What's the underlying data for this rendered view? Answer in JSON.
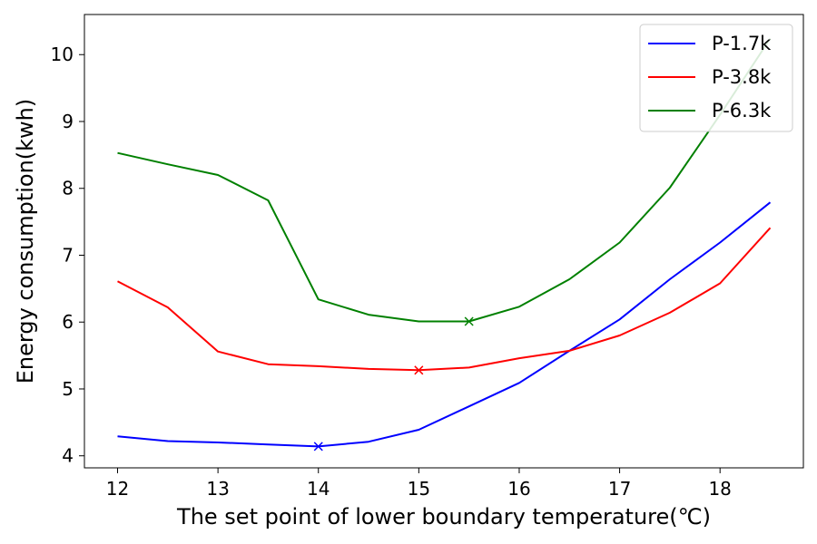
{
  "chart_data": {
    "type": "line",
    "xlabel": "The set point of lower boundary temperature(℃)",
    "ylabel": "Energy consumption(kwh)",
    "xlim": [
      11.67,
      18.83
    ],
    "ylim": [
      3.82,
      10.6
    ],
    "xticks": [
      12,
      13,
      14,
      15,
      16,
      17,
      18
    ],
    "yticks": [
      4,
      5,
      6,
      7,
      8,
      9,
      10
    ],
    "grid": false,
    "legend": "top-right",
    "x": [
      12,
      12.5,
      13,
      13.5,
      14,
      14.5,
      15,
      15.5,
      16,
      16.5,
      17,
      17.5,
      18,
      18.5
    ],
    "series": [
      {
        "name": "P-1.7k",
        "color": "#0000ff",
        "values": [
          4.29,
          4.22,
          4.2,
          4.17,
          4.14,
          4.21,
          4.39,
          4.74,
          5.09,
          5.57,
          6.04,
          6.64,
          7.19,
          7.79
        ],
        "min_marker": {
          "x": 14,
          "y": 4.14
        }
      },
      {
        "name": "P-3.8k",
        "color": "#ff0000",
        "values": [
          6.61,
          6.22,
          5.56,
          5.37,
          5.34,
          5.3,
          5.28,
          5.32,
          5.46,
          5.57,
          5.8,
          6.14,
          6.58,
          7.41
        ],
        "min_marker": {
          "x": 15,
          "y": 5.28
        }
      },
      {
        "name": "P-6.3k",
        "color": "#008000",
        "values": [
          8.53,
          8.36,
          8.2,
          7.82,
          6.34,
          6.11,
          6.01,
          6.01,
          6.23,
          6.64,
          7.19,
          8.01,
          9.1,
          10.24
        ],
        "min_marker": {
          "x": 15.5,
          "y": 6.01
        }
      }
    ]
  }
}
